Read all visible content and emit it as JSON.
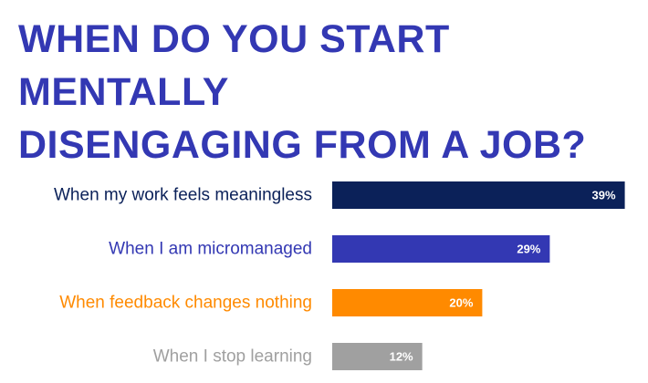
{
  "title_lines": [
    "WHEN DO YOU START MENTALLY",
    "DISENGAGING FROM A JOB?"
  ],
  "colors": {
    "title": "#3338b3",
    "bars": [
      "#0b2159",
      "#3338b3",
      "#ff8a00",
      "#a0a0a0"
    ],
    "labels": [
      "#0b2159",
      "#3338b3",
      "#ff8a00",
      "#a0a0a0"
    ],
    "value_text": [
      "#ffffff",
      "#ffffff",
      "#ffffff",
      "#ffffff"
    ]
  },
  "chart_data": {
    "type": "bar",
    "orientation": "horizontal",
    "title": "WHEN DO YOU START MENTALLY DISENGAGING FROM A JOB?",
    "categories": [
      "When my work feels meaningless",
      "When I am micromanaged",
      "When feedback changes nothing",
      "When I stop learning"
    ],
    "values": [
      39,
      29,
      20,
      12
    ],
    "value_labels": [
      "39%",
      "29%",
      "20%",
      "12%"
    ],
    "unit": "%",
    "grid": false,
    "legend": "none"
  }
}
